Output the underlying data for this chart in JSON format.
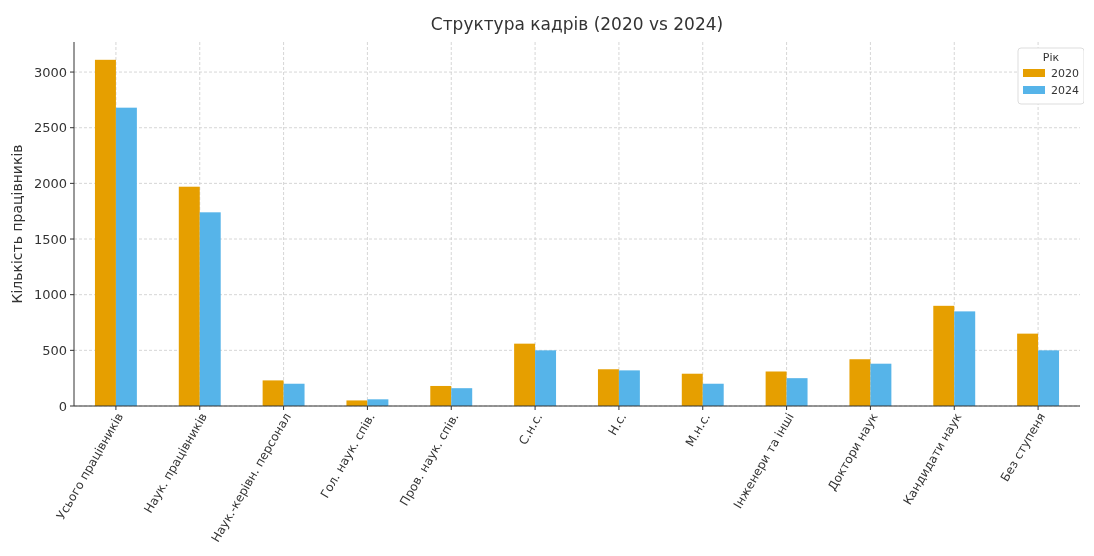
{
  "chart_data": {
    "type": "bar",
    "title": "Структура кадрів (2020 vs 2024)",
    "ylabel": "Кількість працівників",
    "legend_title": "Рік",
    "categories": [
      "Усього працівників",
      "Наук. працівників",
      "Наук.-керівн. персонал",
      "Гол. наук. спів.",
      "Пров. наук. спів.",
      "С.н.с.",
      "Н.с.",
      "М.н.с.",
      "Інженери та інші",
      "Доктори наук",
      "Кандидати наук",
      "Без ступеня"
    ],
    "series": [
      {
        "name": "2020",
        "color": "#e69f00",
        "values": [
          3110,
          1970,
          230,
          50,
          180,
          560,
          330,
          290,
          310,
          420,
          900,
          650
        ]
      },
      {
        "name": "2024",
        "color": "#56b4e9",
        "values": [
          2680,
          1740,
          200,
          60,
          160,
          500,
          320,
          200,
          250,
          380,
          850,
          500
        ]
      }
    ],
    "ylim": [
      0,
      3270
    ],
    "yticks": [
      0,
      500,
      1000,
      1500,
      2000,
      2500,
      3000
    ],
    "grid": true,
    "legend": "top right"
  }
}
